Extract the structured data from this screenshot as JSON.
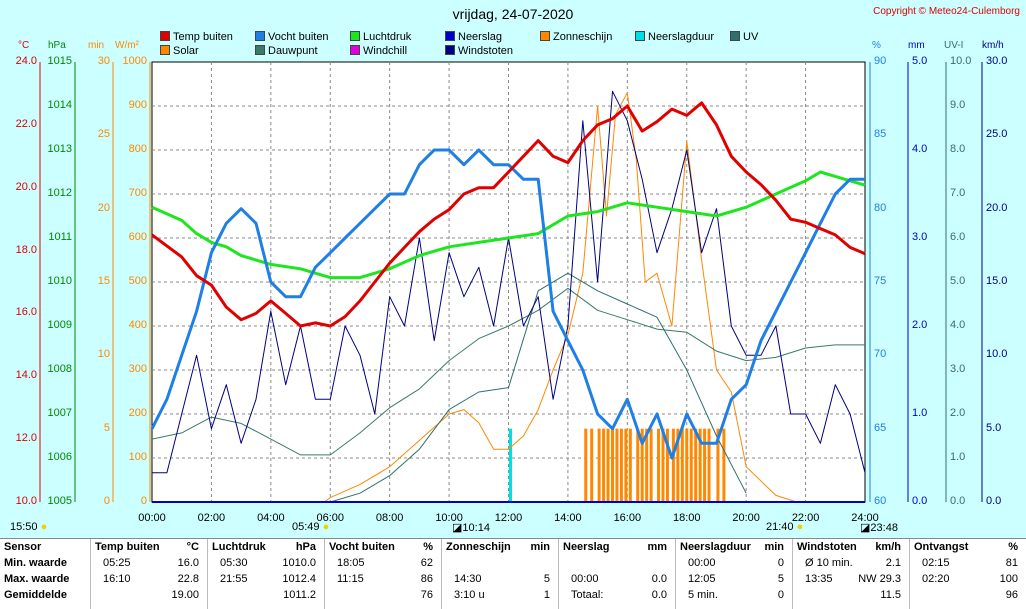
{
  "title": "vrijdag, 24-07-2020",
  "copyright": "Copyright © Meteo24-Culemborg",
  "legend": [
    {
      "label": "Temp buiten",
      "color": "#e00000"
    },
    {
      "label": "Vocht buiten",
      "color": "#1e7fe6"
    },
    {
      "label": "Luchtdruk",
      "color": "#1ee61e"
    },
    {
      "label": "Neerslag",
      "color": "#0000c8"
    },
    {
      "label": "Zonneschijn",
      "color": "#ff8800"
    },
    {
      "label": "Neerslagduur",
      "color": "#00e0e0"
    },
    {
      "label": "UV",
      "color": "#2f6f6f"
    },
    {
      "label": "Solar",
      "color": "#ff8800"
    },
    {
      "label": "Dauwpunt",
      "color": "#3a7a6a"
    },
    {
      "label": "Windchill",
      "color": "#e000e0"
    },
    {
      "label": "Windstoten",
      "color": "#000080"
    }
  ],
  "axes": {
    "temp": {
      "unit": "°C",
      "ticks": [
        "24.0",
        "22.0",
        "20.0",
        "18.0",
        "16.0",
        "14.0",
        "12.0",
        "10.0"
      ],
      "color": "#e00000"
    },
    "pressure": {
      "unit": "hPa",
      "ticks": [
        "1015",
        "1014",
        "1013",
        "1012",
        "1011",
        "1010",
        "1009",
        "1008",
        "1007",
        "1006",
        "1005"
      ],
      "color": "#008800"
    },
    "sun_min": {
      "unit": "min",
      "ticks": [
        "30",
        "25",
        "20",
        "15",
        "10",
        "5",
        "0"
      ],
      "color": "#ff8800"
    },
    "solar": {
      "unit": "W/m²",
      "ticks": [
        "1000",
        "900",
        "800",
        "700",
        "600",
        "500",
        "400",
        "300",
        "200",
        "100",
        "0"
      ],
      "color": "#ff8800"
    },
    "hum": {
      "unit": "%",
      "ticks": [
        "90",
        "85",
        "80",
        "75",
        "70",
        "65",
        "60"
      ],
      "color": "#1e7fe6"
    },
    "rain": {
      "unit": "mm",
      "ticks": [
        "5.0",
        "4.0",
        "3.0",
        "2.0",
        "1.0",
        "0.0"
      ],
      "color": "#0000c8"
    },
    "uv": {
      "unit": "UV-I",
      "ticks": [
        "10.0",
        "9.0",
        "8.0",
        "7.0",
        "6.0",
        "5.0",
        "4.0",
        "3.0",
        "2.0",
        "1.0",
        "0.0"
      ],
      "color": "#2f6f6f"
    },
    "wind": {
      "unit": "km/h",
      "ticks": [
        "30.0",
        "25.0",
        "20.0",
        "15.0",
        "10.0",
        "5.0",
        "0.0"
      ],
      "color": "#000080"
    }
  },
  "xticks": [
    "00:00",
    "02:00",
    "04:00",
    "06:00",
    "08:00",
    "10:00",
    "12:00",
    "14:00",
    "16:00",
    "18:00",
    "20:00",
    "22:00",
    "24:00"
  ],
  "events": [
    {
      "time": "15:50",
      "icon": "sunrise-icon"
    },
    {
      "time": "05:49",
      "icon": "sunrise-icon"
    },
    {
      "time": "10:14",
      "icon": "moonrise-icon"
    },
    {
      "time": "21:40",
      "icon": "sunset-icon"
    },
    {
      "time": "23:48",
      "icon": "moonset-icon"
    }
  ],
  "chart_data": {
    "type": "line",
    "title": "vrijdag, 24-07-2020",
    "x_range": [
      0,
      24
    ],
    "series": [
      {
        "name": "Temp buiten",
        "unit": "°C",
        "ylim": [
          10,
          24
        ],
        "color": "#e00000",
        "x": [
          0,
          1,
          1.5,
          2,
          2.5,
          3,
          3.5,
          4,
          4.5,
          5,
          5.5,
          6,
          6.5,
          7,
          7.5,
          8,
          8.5,
          9,
          9.5,
          10,
          10.5,
          11,
          11.5,
          12,
          12.5,
          13,
          13.5,
          14,
          14.5,
          15,
          15.5,
          16,
          16.5,
          17,
          17.5,
          18,
          18.5,
          19,
          19.5,
          20,
          20.5,
          21,
          21.5,
          22,
          22.5,
          23,
          23.5,
          24
        ],
        "y": [
          18.5,
          17.8,
          17.2,
          16.9,
          16.2,
          15.8,
          16.0,
          16.4,
          16.0,
          15.6,
          15.7,
          15.6,
          15.9,
          16.4,
          17.0,
          17.6,
          18.1,
          18.6,
          19.0,
          19.3,
          19.8,
          20.0,
          20.0,
          20.5,
          21.0,
          21.5,
          21.0,
          20.8,
          21.5,
          22.0,
          22.2,
          22.6,
          21.8,
          22.1,
          22.5,
          22.3,
          22.7,
          22.0,
          21.0,
          20.5,
          20.1,
          19.6,
          19.0,
          18.9,
          18.7,
          18.5,
          18.1,
          17.9
        ]
      },
      {
        "name": "Vocht buiten",
        "unit": "%",
        "ylim": [
          60,
          90
        ],
        "color": "#1e7fe6",
        "x": [
          0,
          0.5,
          1,
          1.5,
          2,
          2.5,
          3,
          3.5,
          4,
          4.5,
          5,
          5.5,
          6,
          6.5,
          7,
          7.5,
          8,
          8.5,
          9,
          9.5,
          10,
          10.5,
          11,
          11.5,
          12,
          12.5,
          13,
          13.5,
          14,
          14.5,
          15,
          15.5,
          16,
          16.5,
          17,
          17.5,
          18,
          18.5,
          19,
          19.5,
          20,
          20.5,
          21,
          21.5,
          22,
          22.5,
          23,
          23.5,
          24
        ],
        "y": [
          65,
          67,
          70,
          73,
          77,
          79,
          80,
          79,
          75,
          74,
          74,
          76,
          77,
          78,
          79,
          80,
          81,
          81,
          83,
          84,
          84,
          83,
          84,
          83,
          83,
          82,
          82,
          73,
          71,
          69,
          66,
          65,
          67,
          64,
          66,
          63,
          66,
          64,
          64,
          67,
          68,
          71,
          73,
          75,
          77,
          79,
          81,
          82,
          82
        ]
      },
      {
        "name": "Luchtdruk",
        "unit": "hPa",
        "ylim": [
          1005,
          1015
        ],
        "color": "#1ee61e",
        "x": [
          0,
          1,
          1.5,
          2,
          2.5,
          3,
          4,
          5,
          6,
          7,
          8,
          9,
          10,
          11,
          12,
          13,
          14,
          15,
          16,
          17,
          18,
          19,
          20,
          21,
          22,
          22.5,
          23,
          23.5,
          24
        ],
        "y": [
          1011.7,
          1011.4,
          1011.1,
          1010.9,
          1010.8,
          1010.6,
          1010.4,
          1010.3,
          1010.1,
          1010.1,
          1010.3,
          1010.6,
          1010.8,
          1010.9,
          1011.0,
          1011.1,
          1011.5,
          1011.6,
          1011.8,
          1011.7,
          1011.6,
          1011.5,
          1011.7,
          1012.0,
          1012.3,
          1012.5,
          1012.4,
          1012.3,
          1012.2
        ]
      },
      {
        "name": "Solar",
        "unit": "W/m²",
        "ylim": [
          0,
          1000
        ],
        "color": "#ff8800",
        "x": [
          5.8,
          6,
          7,
          8,
          9,
          10,
          10.5,
          11,
          11.5,
          12,
          12.5,
          13,
          13.5,
          14,
          14.5,
          15,
          15.3,
          15.6,
          16,
          16.3,
          16.6,
          17,
          17.5,
          18,
          18.5,
          19,
          19.5,
          20,
          21,
          21.7
        ],
        "y": [
          0,
          10,
          40,
          80,
          140,
          200,
          210,
          180,
          120,
          120,
          150,
          210,
          300,
          380,
          520,
          900,
          650,
          880,
          930,
          780,
          500,
          520,
          400,
          820,
          550,
          300,
          250,
          80,
          15,
          0
        ]
      },
      {
        "name": "Dauwpunt",
        "unit": "°C",
        "ylim": [
          10,
          24
        ],
        "color": "#3a7a6a",
        "x": [
          0,
          1,
          2,
          3,
          4,
          5,
          6,
          7,
          8,
          9,
          10,
          11,
          12,
          13,
          14,
          15,
          16,
          17,
          18,
          19,
          20,
          21,
          22,
          23,
          24
        ],
        "y": [
          12.0,
          12.2,
          12.7,
          12.5,
          12.0,
          11.5,
          11.5,
          12.2,
          13.0,
          13.6,
          14.5,
          15.2,
          15.6,
          16.1,
          16.8,
          16.1,
          15.8,
          15.5,
          15.4,
          14.8,
          14.5,
          14.6,
          14.9,
          15.0,
          15.0
        ]
      },
      {
        "name": "UV",
        "unit": "UV-I",
        "ylim": [
          0,
          10
        ],
        "color": "#2f6f6f",
        "x": [
          6,
          7,
          8,
          9,
          10,
          11,
          12,
          13,
          14,
          15,
          16,
          17,
          18,
          19,
          20
        ],
        "y": [
          0,
          0.2,
          0.6,
          1.2,
          2.1,
          2.5,
          2.6,
          4.8,
          5.2,
          4.8,
          4.5,
          4.2,
          3.0,
          1.5,
          0.2
        ]
      },
      {
        "name": "Windstoten",
        "unit": "km/h",
        "ylim": [
          0,
          30
        ],
        "color": "#000080",
        "x": [
          0,
          0.5,
          1,
          1.5,
          2,
          2.5,
          3,
          3.5,
          4,
          4.5,
          5,
          5.5,
          6,
          6.5,
          7,
          7.5,
          8,
          8.5,
          9,
          9.5,
          10,
          10.5,
          11,
          11.5,
          12,
          12.5,
          13,
          13.5,
          14,
          14.5,
          15,
          15.5,
          16,
          16.5,
          17,
          17.5,
          18,
          18.5,
          19,
          19.5,
          20,
          20.5,
          21,
          21.5,
          22,
          22.5,
          23,
          23.5,
          24
        ],
        "y": [
          2,
          2,
          6,
          10,
          5,
          8,
          4,
          7,
          13,
          8,
          12,
          7,
          7,
          12,
          10,
          6,
          14,
          12,
          18,
          11,
          17,
          14,
          16,
          12,
          18,
          12,
          14,
          7,
          12,
          26,
          15,
          28,
          26,
          22,
          17,
          20,
          24,
          17,
          20,
          12,
          10,
          10,
          12,
          6,
          6,
          4,
          8,
          6,
          2
        ]
      },
      {
        "name": "Neerslag",
        "unit": "mm",
        "ylim": [
          0,
          5
        ],
        "color": "#0000c8",
        "x": [
          0,
          24
        ],
        "y": [
          0,
          0
        ]
      },
      {
        "name": "Zonneschijn",
        "unit": "min",
        "ylim": [
          0,
          30
        ],
        "color": "#ff8800",
        "x": [
          14.5,
          15,
          15.5,
          16,
          16.5,
          17,
          17.5,
          18,
          18.5
        ],
        "y": [
          5,
          5,
          5,
          5,
          5,
          5,
          5,
          5,
          5
        ]
      },
      {
        "name": "Neerslagduur",
        "unit": "min",
        "ylim": [
          0,
          30
        ],
        "color": "#00e0e0",
        "x": [
          12.05
        ],
        "y": [
          5
        ]
      }
    ]
  },
  "stats": {
    "columns": [
      {
        "header": "Sensor",
        "unit": "",
        "rows": [
          "Min. waarde",
          "Max. waarde",
          "Gemiddelde"
        ]
      },
      {
        "header": "Temp buiten",
        "unit": "°C",
        "rows": [
          [
            "05:25",
            "16.0"
          ],
          [
            "16:10",
            "22.8"
          ],
          [
            "",
            "19.00"
          ]
        ]
      },
      {
        "header": "Luchtdruk",
        "unit": "hPa",
        "rows": [
          [
            "05:30",
            "1010.0"
          ],
          [
            "21:55",
            "1012.4"
          ],
          [
            "",
            "1011.2"
          ]
        ]
      },
      {
        "header": "Vocht buiten",
        "unit": "%",
        "rows": [
          [
            "18:05",
            "62"
          ],
          [
            "11:15",
            "86"
          ],
          [
            "",
            "76"
          ]
        ]
      },
      {
        "header": "Zonneschijn",
        "unit": "min",
        "rows": [
          [
            "",
            ""
          ],
          [
            "14:30",
            "5"
          ],
          [
            "3:10 u",
            "1"
          ]
        ]
      },
      {
        "header": "Neerslag",
        "unit": "mm",
        "rows": [
          [
            "",
            ""
          ],
          [
            "00:00",
            "0.0"
          ],
          [
            "Totaal:",
            "0.0"
          ]
        ]
      },
      {
        "header": "Neerslagduur",
        "unit": "min",
        "rows": [
          [
            "00:00",
            "0"
          ],
          [
            "12:05",
            "5"
          ],
          [
            "5 min.",
            "0"
          ]
        ]
      },
      {
        "header": "Windstoten",
        "unit": "km/h",
        "rows": [
          [
            "Ø 10 min.",
            "2.1"
          ],
          [
            "13:35",
            "NW 29.3"
          ],
          [
            "",
            "11.5"
          ]
        ]
      },
      {
        "header": "Ontvangst",
        "unit": "%",
        "rows": [
          [
            "02:15",
            "81"
          ],
          [
            "02:20",
            "100"
          ],
          [
            "",
            "96"
          ]
        ]
      }
    ]
  }
}
